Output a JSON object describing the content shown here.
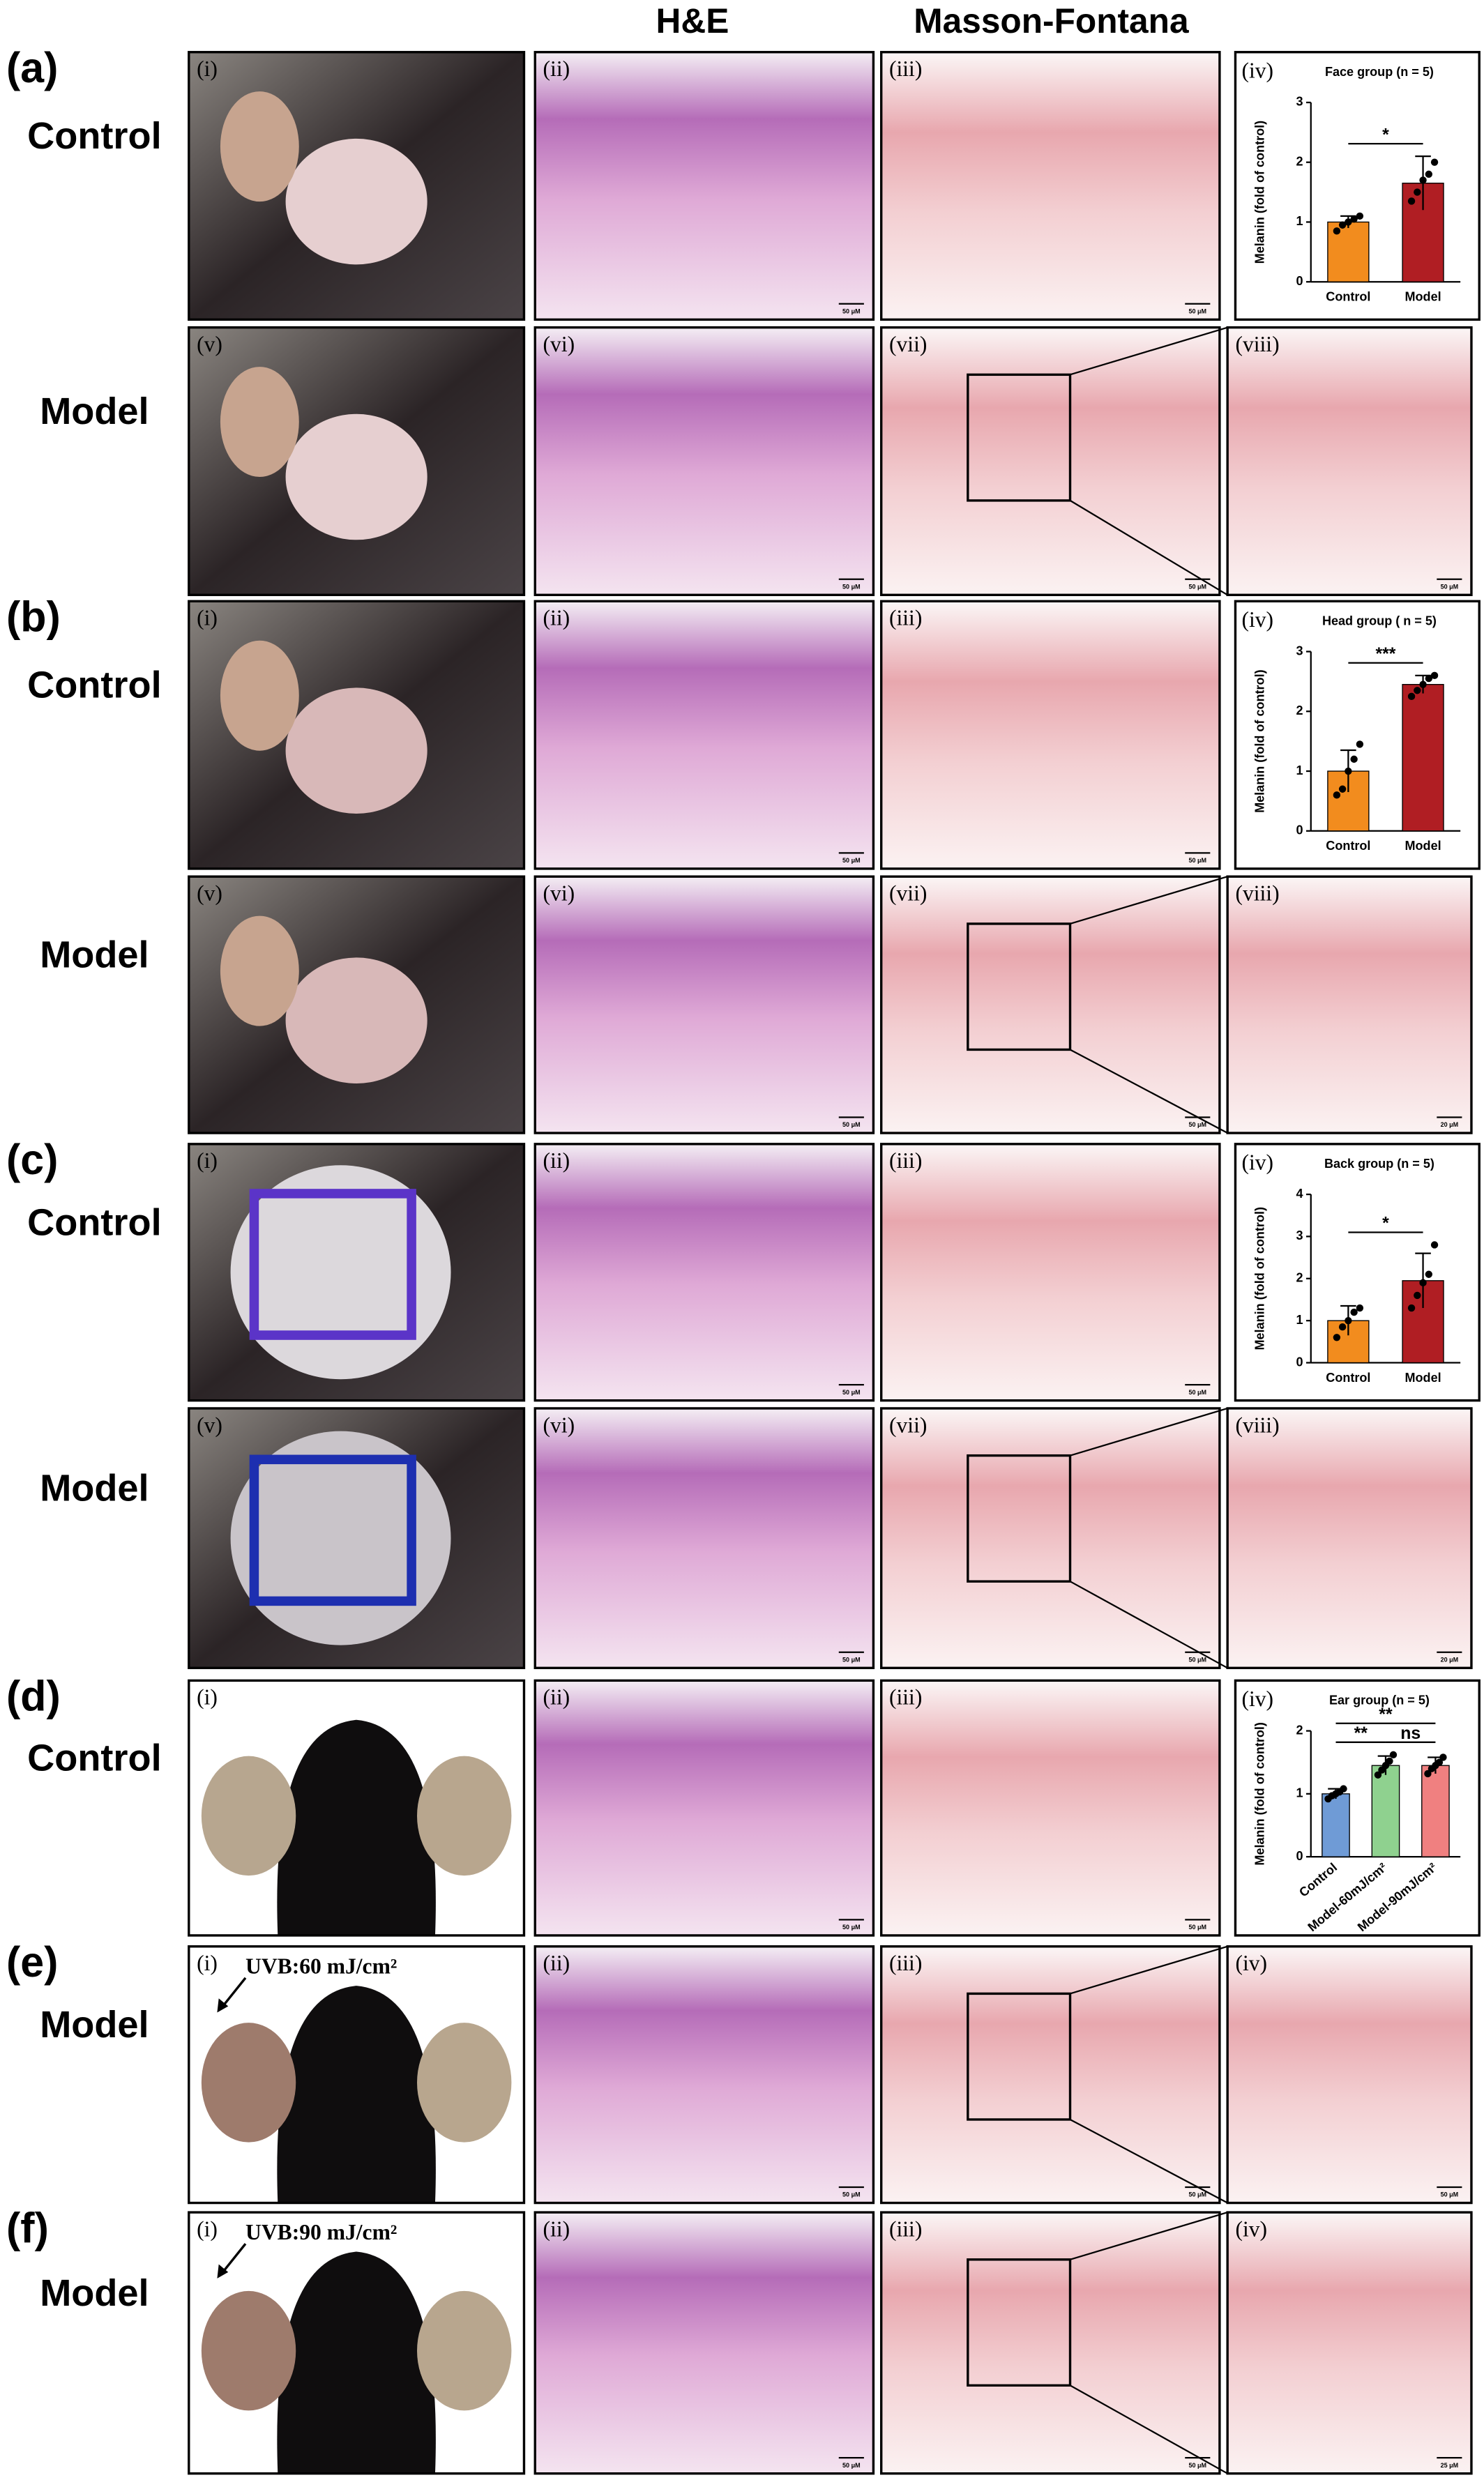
{
  "figure": {
    "column_headers": [
      "H&E",
      "Masson-Fontana"
    ],
    "sections": [
      {
        "letter": "(a)",
        "rows": [
          {
            "label": "Control",
            "panels": [
              {
                "label": "(i)"
              },
              {
                "label": "(ii)",
                "scale": "50 μM"
              },
              {
                "label": "(iii)",
                "scale": "50 μM"
              }
            ]
          },
          {
            "label": "Model",
            "panels": [
              {
                "label": "(v)"
              },
              {
                "label": "(vi)",
                "scale": "50 μM"
              },
              {
                "label": "(vii)",
                "scale": "50 μM"
              },
              {
                "label": "(viii)",
                "scale": "50 μM"
              }
            ]
          }
        ]
      },
      {
        "letter": "(b)",
        "rows": [
          {
            "label": "Control",
            "panels": [
              {
                "label": "(i)"
              },
              {
                "label": "(ii)",
                "scale": "50 μM"
              },
              {
                "label": "(iii)",
                "scale": "50 μM"
              }
            ]
          },
          {
            "label": "Model",
            "panels": [
              {
                "label": "(v)"
              },
              {
                "label": "(vi)",
                "scale": "50 μM"
              },
              {
                "label": "(vii)",
                "scale": "50 μM"
              },
              {
                "label": "(viii)",
                "scale": "20 μM"
              }
            ]
          }
        ]
      },
      {
        "letter": "(c)",
        "rows": [
          {
            "label": "Control",
            "panels": [
              {
                "label": "(i)"
              },
              {
                "label": "(ii)",
                "scale": "50 μM"
              },
              {
                "label": "(iii)",
                "scale": "50 μM"
              }
            ]
          },
          {
            "label": "Model",
            "panels": [
              {
                "label": "(v)"
              },
              {
                "label": "(vi)",
                "scale": "50 μM"
              },
              {
                "label": "(vii)",
                "scale": "50 μM"
              },
              {
                "label": "(viii)",
                "scale": "20 μM"
              }
            ]
          }
        ]
      },
      {
        "letter": "(d)",
        "rows": [
          {
            "label": "Control",
            "panels": [
              {
                "label": "(i)"
              },
              {
                "label": "(ii)",
                "scale": "50 μM"
              },
              {
                "label": "(iii)",
                "scale": "50 μM"
              }
            ]
          }
        ]
      },
      {
        "letter": "(e)",
        "rows": [
          {
            "label": "Model",
            "panels": [
              {
                "label": "(i)",
                "annotation": "UVB:60 mJ/cm²"
              },
              {
                "label": "(ii)",
                "scale": "50 μM"
              },
              {
                "label": "(iii)",
                "scale": "50 μM"
              },
              {
                "label": "(iv)",
                "scale": "50 μM"
              }
            ]
          }
        ]
      },
      {
        "letter": "(f)",
        "rows": [
          {
            "label": "Model",
            "panels": [
              {
                "label": "(i)",
                "annotation": "UVB:90 mJ/cm²"
              },
              {
                "label": "(ii)",
                "scale": "50 μM"
              },
              {
                "label": "(iii)",
                "scale": "50 μM"
              },
              {
                "label": "(iv)",
                "scale": "25 μM"
              }
            ]
          }
        ]
      }
    ]
  },
  "chart_data": [
    {
      "type": "bar",
      "panel_label": "(iv)",
      "title": "Face group  (n = 5)",
      "ylabel": "Melanin  (fold of control)",
      "categories": [
        "Control",
        "Model"
      ],
      "values": [
        1.0,
        1.65
      ],
      "errors": [
        0.1,
        0.45
      ],
      "colors": [
        "#f28c1e",
        "#b01e23"
      ],
      "points": [
        [
          0.85,
          0.95,
          1.0,
          1.05,
          1.1
        ],
        [
          1.35,
          1.5,
          1.7,
          1.8,
          2.0
        ]
      ],
      "ylim": [
        0,
        3
      ],
      "yticks": [
        0,
        1,
        2,
        3
      ],
      "significance": [
        "*"
      ]
    },
    {
      "type": "bar",
      "panel_label": "(iv)",
      "title": "Head group  ( n = 5)",
      "ylabel": "Melanin  (fold of control)",
      "categories": [
        "Control",
        "Model"
      ],
      "values": [
        1.0,
        2.45
      ],
      "errors": [
        0.35,
        0.15
      ],
      "colors": [
        "#f28c1e",
        "#b01e23"
      ],
      "points": [
        [
          0.6,
          0.7,
          1.0,
          1.2,
          1.45
        ],
        [
          2.25,
          2.35,
          2.45,
          2.55,
          2.6
        ]
      ],
      "ylim": [
        0,
        3
      ],
      "yticks": [
        0,
        1,
        2,
        3
      ],
      "significance": [
        "***"
      ]
    },
    {
      "type": "bar",
      "panel_label": "(iv)",
      "title": "Back group  (n = 5)",
      "ylabel": "Melanin  (fold of control)",
      "categories": [
        "Control",
        "Model"
      ],
      "values": [
        1.0,
        1.95
      ],
      "errors": [
        0.35,
        0.65
      ],
      "colors": [
        "#f28c1e",
        "#b01e23"
      ],
      "points": [
        [
          0.6,
          0.85,
          1.0,
          1.2,
          1.3
        ],
        [
          1.3,
          1.6,
          1.9,
          2.1,
          2.8
        ]
      ],
      "ylim": [
        0,
        4
      ],
      "yticks": [
        0,
        1,
        2,
        3,
        4
      ],
      "significance": [
        "*"
      ]
    },
    {
      "type": "bar",
      "panel_label": "(iv)",
      "title": "Ear group (n = 5)",
      "ylabel": "Melanin (fold of control)",
      "categories": [
        "Control",
        "Model-60mJ/cm²",
        "Model-90mJ/cm²"
      ],
      "values": [
        1.0,
        1.45,
        1.45
      ],
      "errors": [
        0.08,
        0.15,
        0.13
      ],
      "colors": [
        "#6f9bd6",
        "#8fd18f",
        "#f08080"
      ],
      "points": [
        [
          0.92,
          0.97,
          1.0,
          1.03,
          1.08
        ],
        [
          1.3,
          1.38,
          1.45,
          1.52,
          1.62
        ],
        [
          1.32,
          1.4,
          1.45,
          1.5,
          1.58
        ]
      ],
      "ylim": [
        0,
        2
      ],
      "yticks": [
        0,
        1,
        2
      ],
      "significance": [
        "**",
        "ns",
        "**"
      ]
    }
  ]
}
